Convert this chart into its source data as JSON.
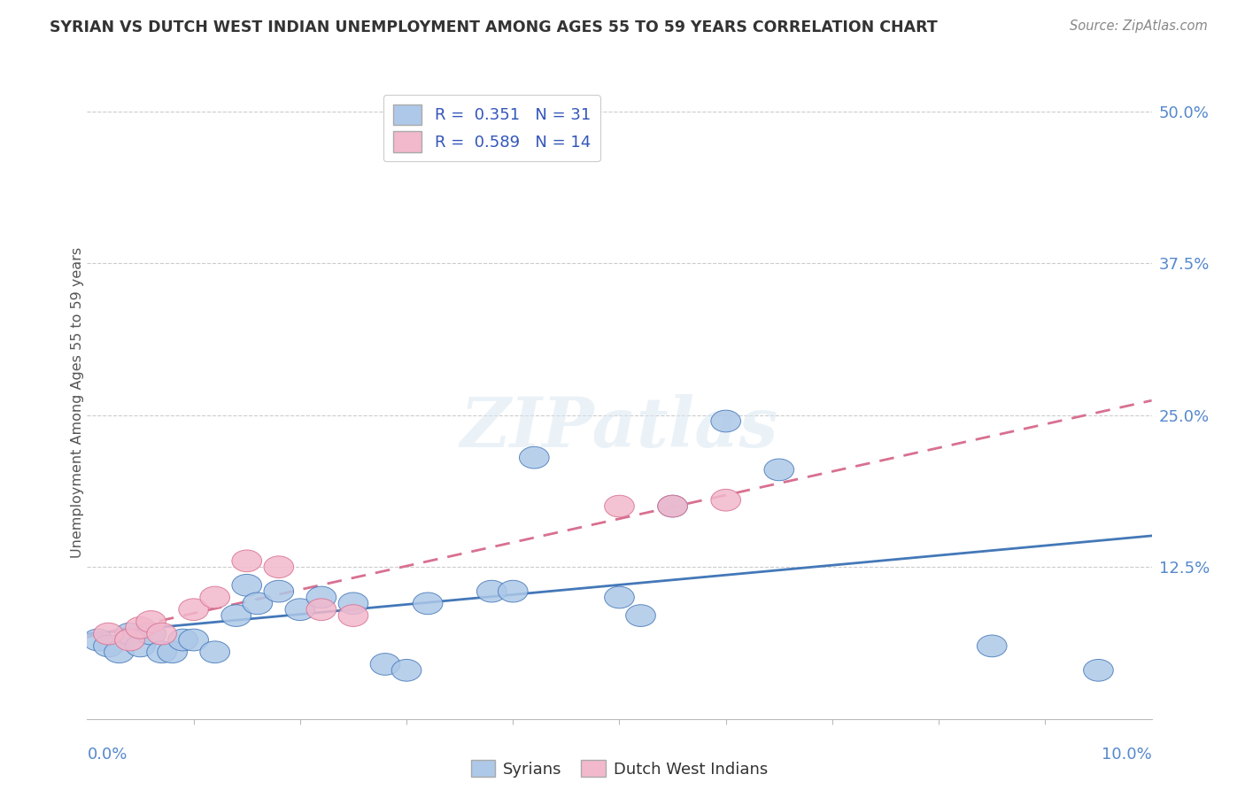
{
  "title": "SYRIAN VS DUTCH WEST INDIAN UNEMPLOYMENT AMONG AGES 55 TO 59 YEARS CORRELATION CHART",
  "source": "Source: ZipAtlas.com",
  "ylabel": "Unemployment Among Ages 55 to 59 years",
  "background_color": "#ffffff",
  "grid_color": "#cccccc",
  "watermark_text": "ZIPatlas",
  "syrians_color": "#adc8e8",
  "dutch_color": "#f2b8cc",
  "line_syrian_color": "#4478b8",
  "line_dutch_color": "#d87090",
  "syrians_x": [
    0.001,
    0.002,
    0.003,
    0.004,
    0.005,
    0.006,
    0.007,
    0.008,
    0.009,
    0.01,
    0.012,
    0.014,
    0.015,
    0.016,
    0.018,
    0.02,
    0.022,
    0.025,
    0.028,
    0.03,
    0.032,
    0.038,
    0.04,
    0.042,
    0.05,
    0.052,
    0.055,
    0.06,
    0.065,
    0.085,
    0.095
  ],
  "syrians_y": [
    0.065,
    0.06,
    0.055,
    0.07,
    0.06,
    0.07,
    0.055,
    0.055,
    0.065,
    0.065,
    0.055,
    0.085,
    0.11,
    0.095,
    0.105,
    0.09,
    0.1,
    0.095,
    0.045,
    0.04,
    0.095,
    0.105,
    0.105,
    0.215,
    0.1,
    0.085,
    0.175,
    0.245,
    0.205,
    0.06,
    0.04
  ],
  "dutch_x": [
    0.002,
    0.004,
    0.005,
    0.006,
    0.007,
    0.01,
    0.012,
    0.015,
    0.018,
    0.022,
    0.025,
    0.05,
    0.055,
    0.06
  ],
  "dutch_y": [
    0.07,
    0.065,
    0.075,
    0.08,
    0.07,
    0.09,
    0.1,
    0.13,
    0.125,
    0.09,
    0.085,
    0.175,
    0.175,
    0.18
  ],
  "xlim": [
    0.0,
    0.1
  ],
  "ylim": [
    0.0,
    0.52
  ],
  "ytick_vals": [
    0.125,
    0.25,
    0.375,
    0.5
  ],
  "ytick_labels": [
    "12.5%",
    "25.0%",
    "37.5%",
    "50.0%"
  ],
  "legend_label1": "R =  0.351   N = 31",
  "legend_label2": "R =  0.589   N = 14",
  "bottom_label1": "Syrians",
  "bottom_label2": "Dutch West Indians",
  "tick_color": "#5588cc",
  "title_color": "#333333",
  "source_color": "#888888",
  "ylabel_color": "#555555"
}
